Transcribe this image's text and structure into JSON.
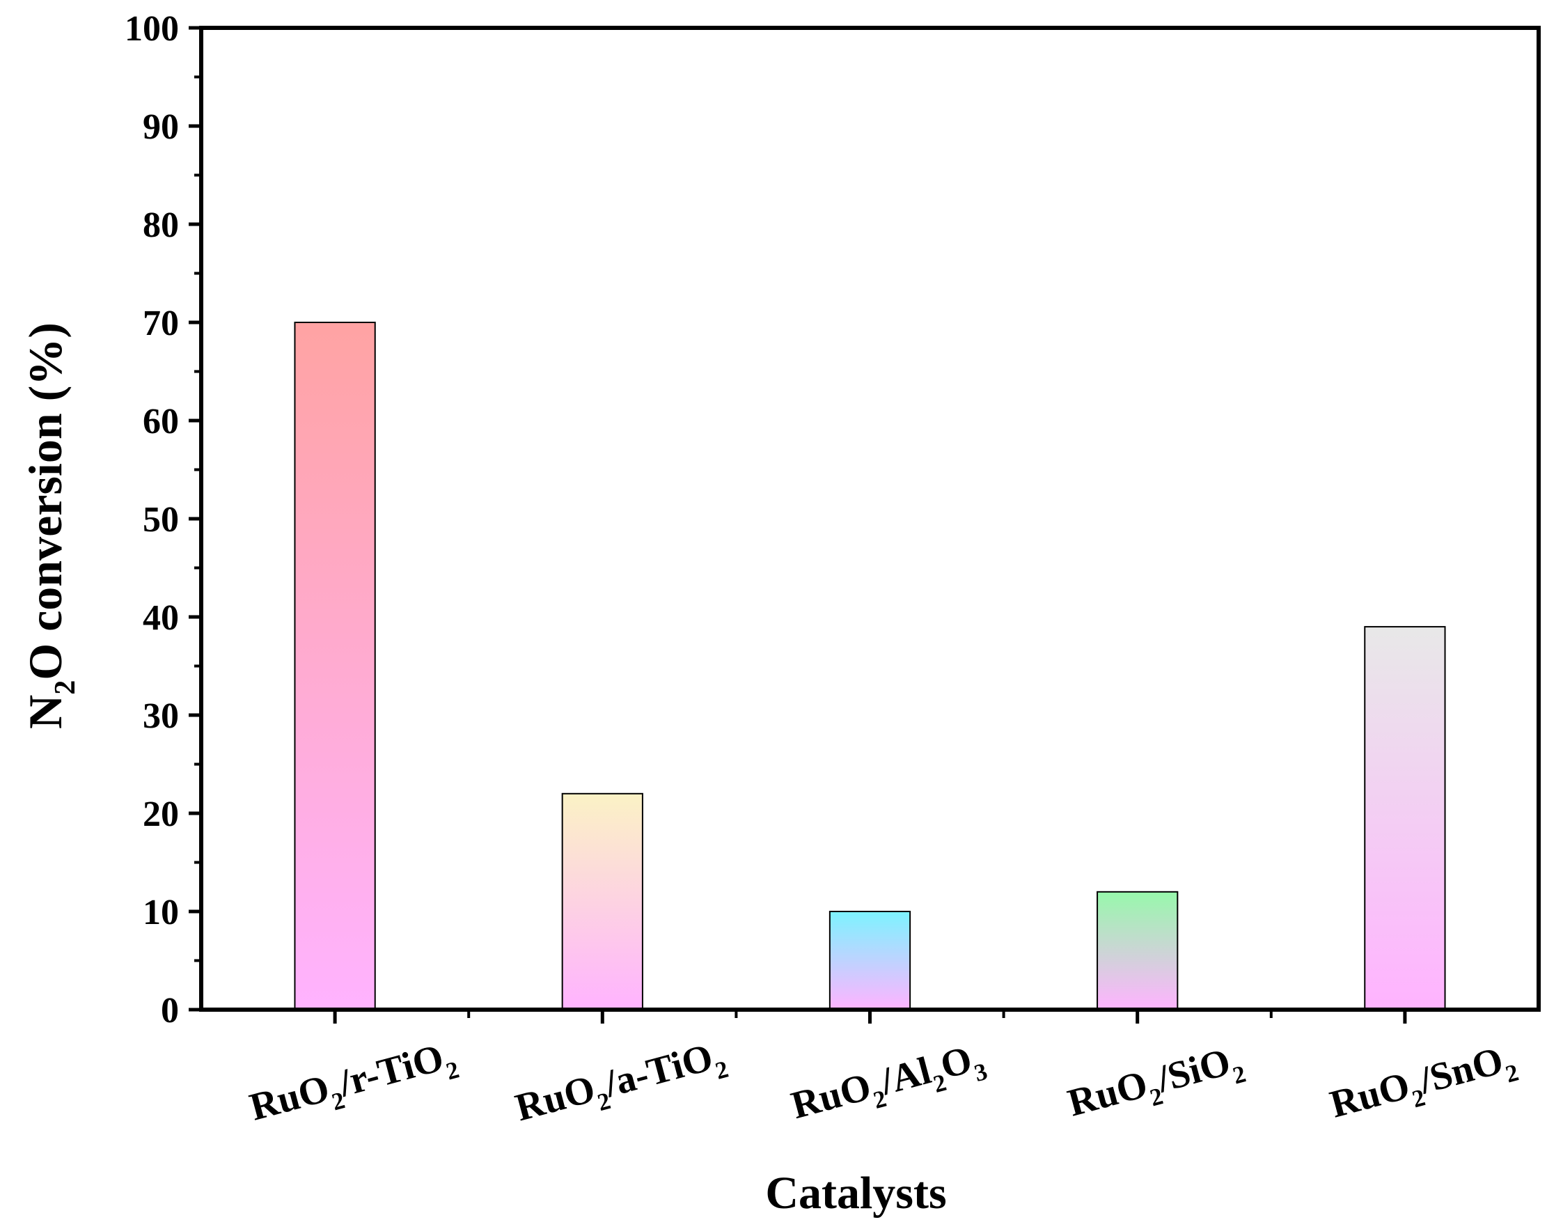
{
  "chart_data": {
    "type": "bar",
    "xlabel": "Catalysts",
    "ylabel": {
      "parts": [
        {
          "text": "N",
          "sub": false
        },
        {
          "text": "2",
          "sub": true
        },
        {
          "text": "O conversion (%)",
          "sub": false
        }
      ]
    },
    "ylim": [
      0,
      100
    ],
    "yticks": [
      "0",
      "10",
      "20",
      "30",
      "40",
      "50",
      "60",
      "70",
      "80",
      "90",
      "100"
    ],
    "grid": false,
    "categories": [
      {
        "parts": [
          {
            "text": "RuO",
            "sub": false
          },
          {
            "text": "2",
            "sub": true
          },
          {
            "text": "/r-TiO",
            "sub": false
          },
          {
            "text": "2",
            "sub": true
          }
        ]
      },
      {
        "parts": [
          {
            "text": "RuO",
            "sub": false
          },
          {
            "text": "2",
            "sub": true
          },
          {
            "text": "/a-TiO",
            "sub": false
          },
          {
            "text": "2",
            "sub": true
          }
        ]
      },
      {
        "parts": [
          {
            "text": "RuO",
            "sub": false
          },
          {
            "text": "2",
            "sub": true
          },
          {
            "text": "/Al",
            "sub": false
          },
          {
            "text": "2",
            "sub": true
          },
          {
            "text": "O",
            "sub": false
          },
          {
            "text": "3",
            "sub": true
          }
        ]
      },
      {
        "parts": [
          {
            "text": "RuO",
            "sub": false
          },
          {
            "text": "2",
            "sub": true
          },
          {
            "text": "/SiO",
            "sub": false
          },
          {
            "text": "2",
            "sub": true
          }
        ]
      },
      {
        "parts": [
          {
            "text": "RuO",
            "sub": false
          },
          {
            "text": "2",
            "sub": true
          },
          {
            "text": "/SnO",
            "sub": false
          },
          {
            "text": "2",
            "sub": true
          }
        ]
      }
    ],
    "values": [
      70,
      22,
      10,
      12,
      39
    ],
    "bar_colors": [
      {
        "top": "#ffa3a3",
        "bottom": "#ffb3ff"
      },
      {
        "top": "#fbf2c5",
        "bottom": "#ffb3ff"
      },
      {
        "top": "#7df3ff",
        "bottom": "#ffb3ff"
      },
      {
        "top": "#97f8ab",
        "bottom": "#ffb3ff"
      },
      {
        "top": "#e8e8e8",
        "bottom": "#ffb3ff"
      }
    ]
  }
}
